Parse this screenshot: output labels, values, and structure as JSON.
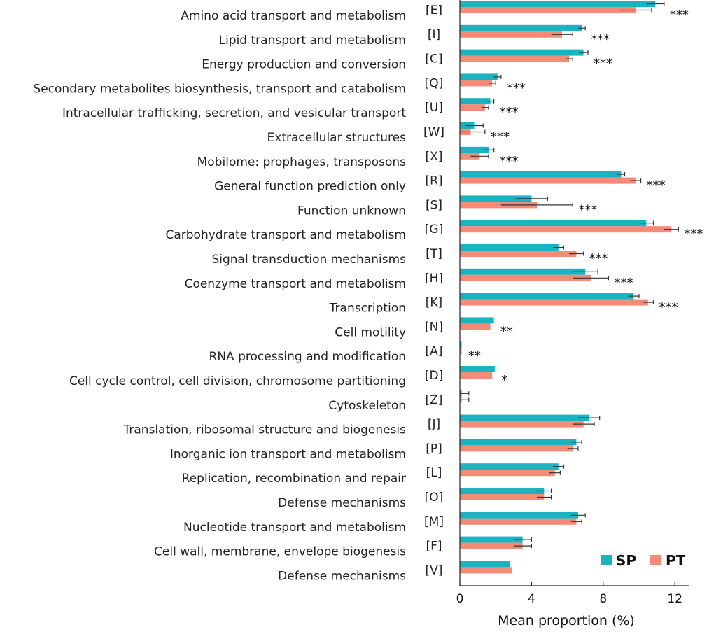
{
  "chart_data": {
    "type": "bar",
    "orientation": "horizontal",
    "title": "",
    "xlabel": "Mean proportion (%)",
    "ylabel": "",
    "xlim": [
      0,
      13
    ],
    "xticks": [
      0,
      4,
      8,
      12
    ],
    "grid": false,
    "legend_position": "bottom-right",
    "categories": [
      "Amino acid transport and metabolism",
      "Lipid transport and metabolism",
      "Energy production and conversion",
      "Secondary metabolites biosynthesis, transport and catabolism",
      "Intracellular trafficking, secretion, and vesicular transport",
      "Extracellular structures",
      "Mobilome: prophages, transposons",
      "General function prediction only",
      "Function unknown",
      "Carbohydrate transport and metabolism",
      "Signal transduction mechanisms",
      "Coenzyme transport and metabolism",
      "Transcription",
      "Cell motility",
      "RNA processing and modification",
      "Cell cycle control, cell division, chromosome partitioning",
      "Cytoskeleton",
      "Translation, ribosomal structure and biogenesis",
      "Inorganic ion transport and metabolism",
      "Replication, recombination and repair",
      "Defense mechanisms",
      "Nucleotide transport and metabolism",
      "Cell wall, membrane, envelope biogenesis",
      "Defense mechanisms"
    ],
    "codes": [
      "[E]",
      "[I]",
      "[C]",
      "[Q]",
      "[U]",
      "[W]",
      "[X]",
      "[R]",
      "[S]",
      "[G]",
      "[T]",
      "[H]",
      "[K]",
      "[N]",
      "[A]",
      "[D]",
      "[Z]",
      "[J]",
      "[P]",
      "[L]",
      "[O]",
      "[M]",
      "[F]",
      "[V]"
    ],
    "significance": [
      "***",
      "***",
      "***",
      "***",
      "***",
      "***",
      "***",
      "***",
      "***",
      "***",
      "***",
      "***",
      "***",
      "**",
      "**",
      "*",
      "",
      "",
      "",
      "",
      "",
      "",
      "",
      ""
    ],
    "series": [
      {
        "name": "SP",
        "color": "#19b3c2",
        "values": [
          10.9,
          6.8,
          6.9,
          2.1,
          1.7,
          0.8,
          1.6,
          9.0,
          4.0,
          10.4,
          5.5,
          7.0,
          9.7,
          1.9,
          0.1,
          1.95,
          0.1,
          7.2,
          6.5,
          5.5,
          4.7,
          6.6,
          3.5,
          2.8
        ],
        "errors": [
          0.5,
          0.2,
          0.25,
          0.2,
          0.2,
          0.5,
          0.3,
          0.2,
          0.9,
          0.4,
          0.3,
          0.7,
          0.3,
          0.05,
          0.05,
          0.05,
          0.4,
          0.6,
          0.3,
          0.3,
          0.4,
          0.4,
          0.5,
          0.05
        ]
      },
      {
        "name": "PT",
        "color": "#f38b76",
        "values": [
          9.8,
          5.7,
          6.1,
          1.8,
          1.4,
          0.6,
          1.1,
          9.8,
          4.3,
          11.8,
          6.5,
          7.3,
          10.5,
          1.7,
          0.1,
          1.8,
          0.1,
          6.9,
          6.3,
          5.3,
          4.7,
          6.5,
          3.5,
          2.9
        ],
        "errors": [
          0.9,
          0.6,
          0.2,
          0.2,
          0.2,
          0.8,
          0.5,
          0.3,
          2.0,
          0.4,
          0.4,
          1.0,
          0.3,
          0.05,
          0.05,
          0.05,
          0.4,
          0.6,
          0.3,
          0.3,
          0.4,
          0.3,
          0.5,
          0.05
        ]
      }
    ]
  }
}
